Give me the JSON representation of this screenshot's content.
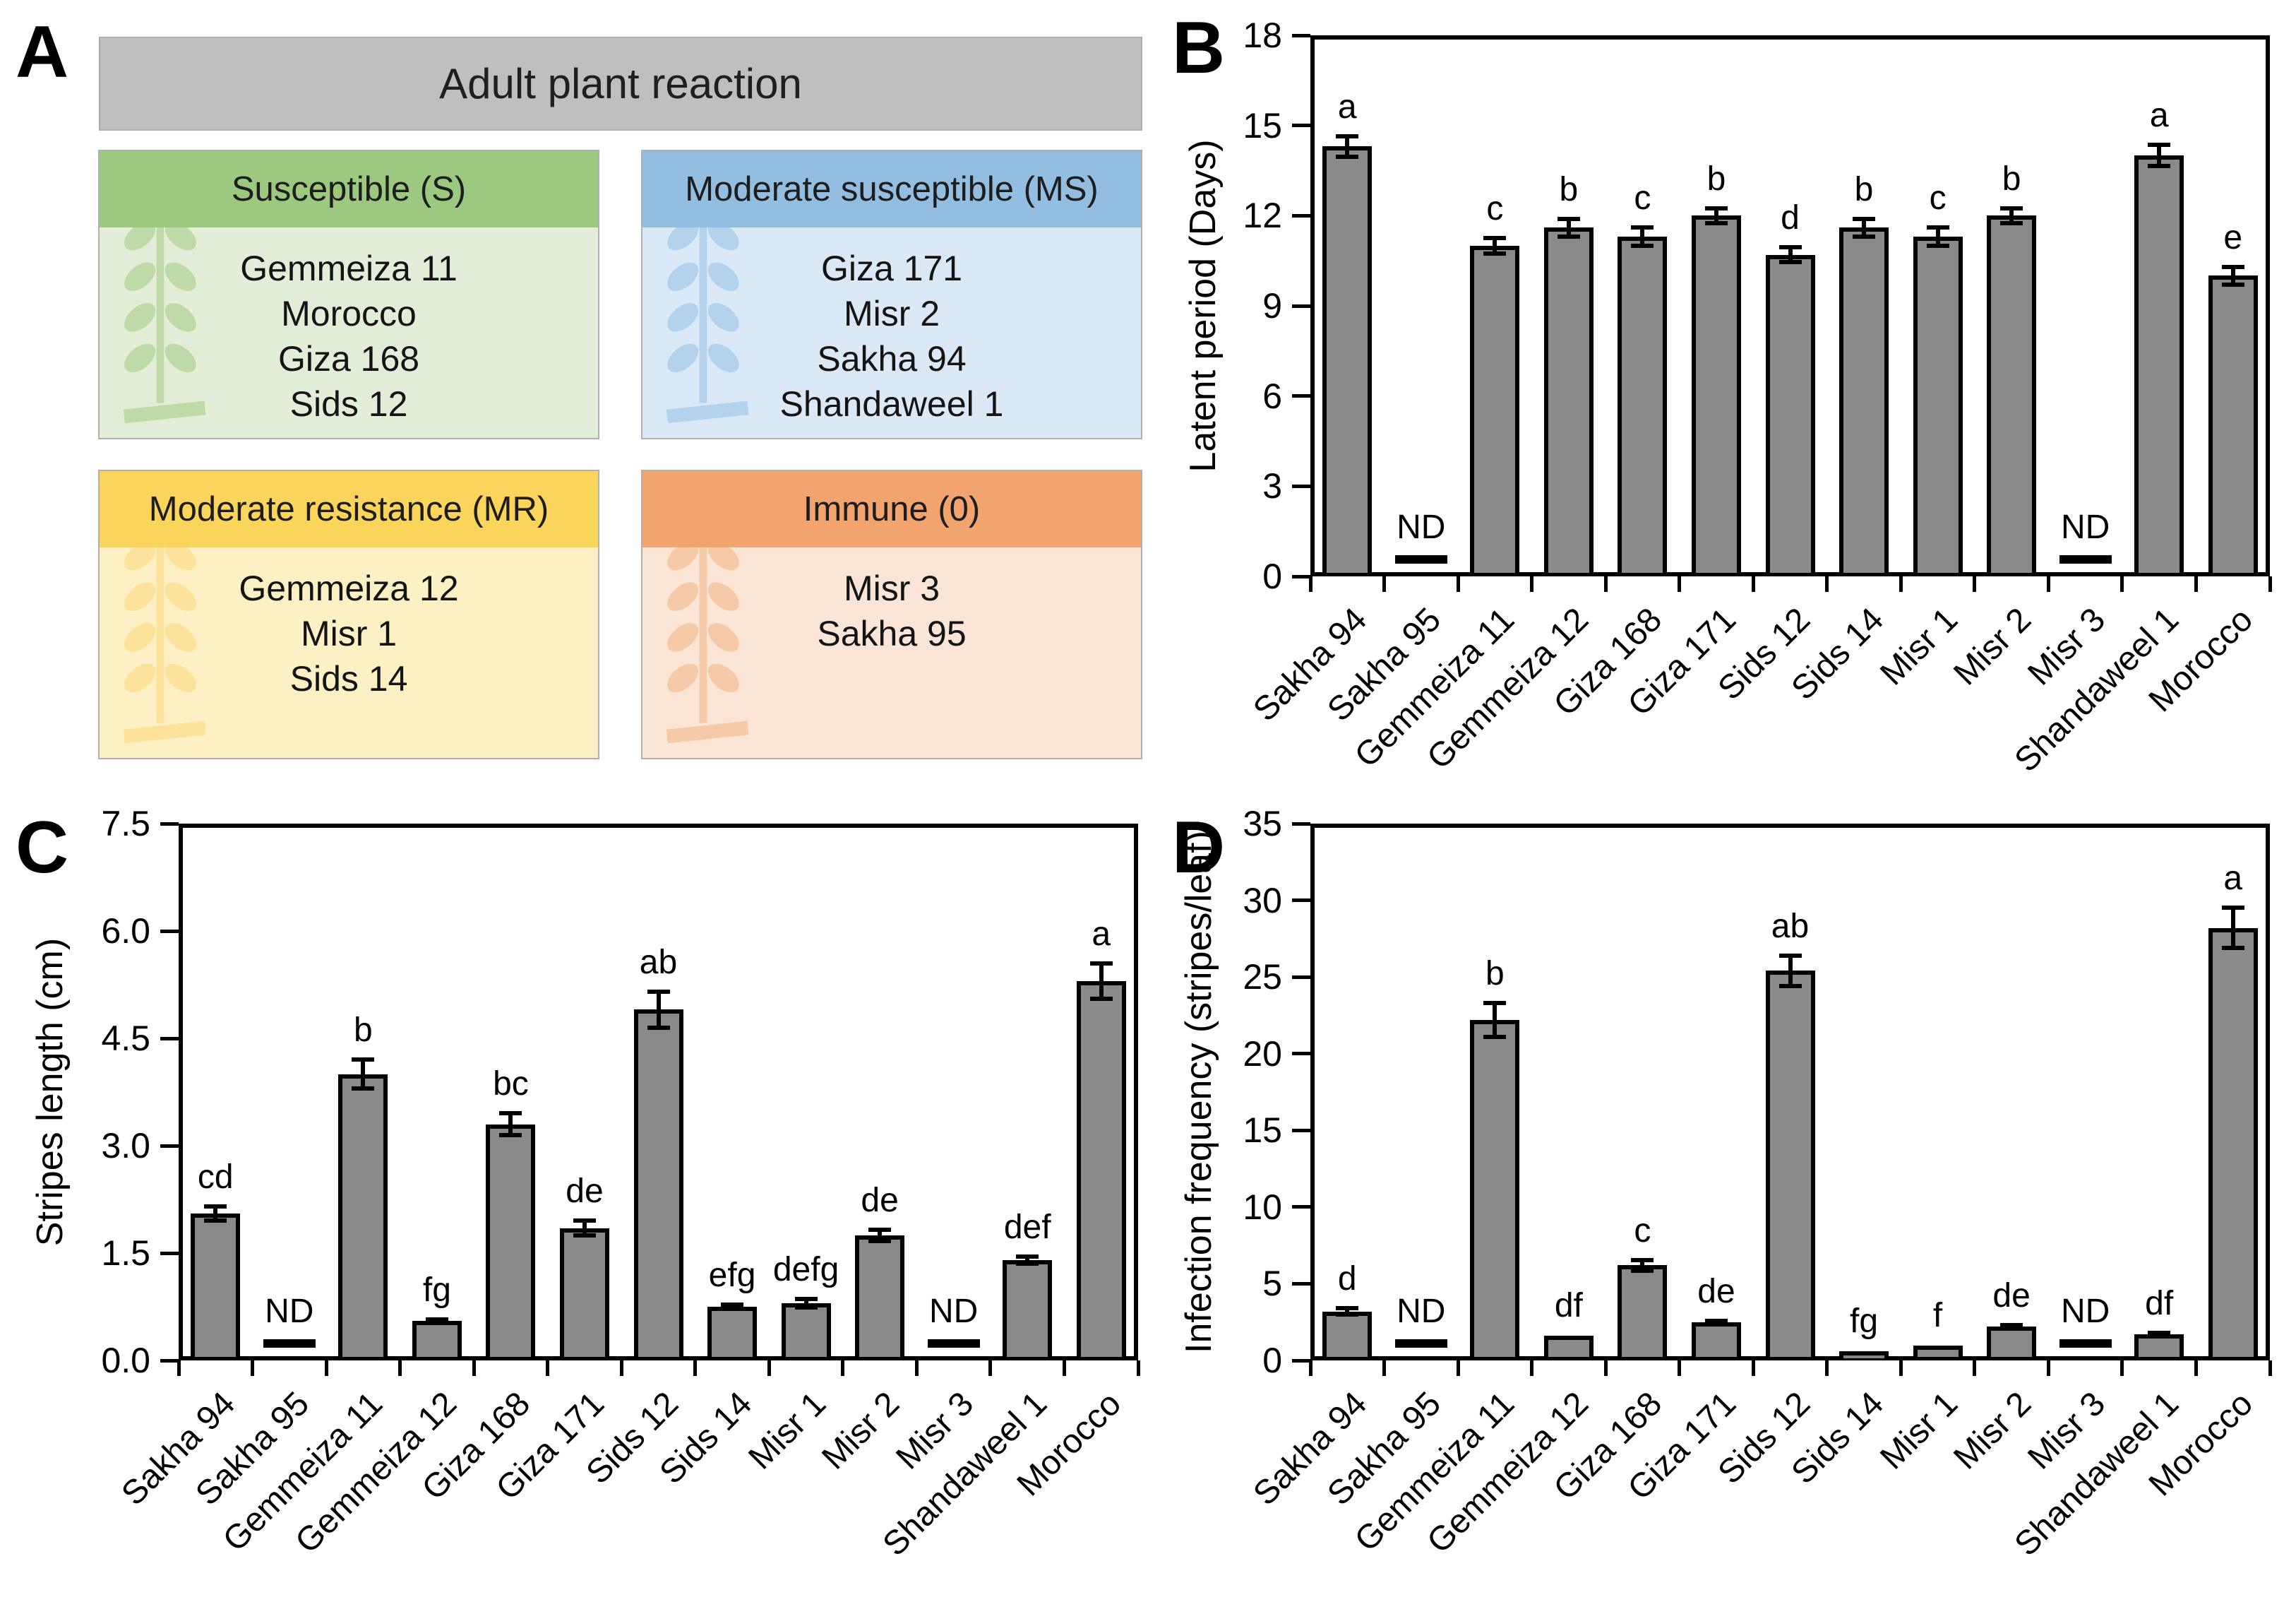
{
  "panels": {
    "a_label": "A",
    "b_label": "B",
    "c_label": "C",
    "d_label": "D"
  },
  "panel_a": {
    "title": "Adult plant reaction",
    "title_bg": "#bfbfbf",
    "boxes": [
      {
        "id": "susceptible",
        "title": "Susceptible (S)",
        "header_color": "#9dc87f",
        "body_color": "#e2eed7",
        "icon_color": "#bedaa8",
        "varieties": [
          "Gemmeiza 11",
          "Morocco",
          "Giza 168",
          "Sids 12"
        ]
      },
      {
        "id": "moderate-susceptible",
        "title": "Moderate susceptible (MS)",
        "header_color": "#93bee2",
        "body_color": "#dbe9f6",
        "icon_color": "#b4d2ec",
        "varieties": [
          "Giza 171",
          "Misr 2",
          "Sakha 94",
          "Shandaweel 1"
        ]
      },
      {
        "id": "moderate-resistance",
        "title": "Moderate resistance (MR)",
        "header_color": "#fbd45c",
        "body_color": "#fdf0c5",
        "icon_color": "#fce29a",
        "varieties": [
          "Gemmeiza 12",
          "Misr 1",
          "Sids 14"
        ]
      },
      {
        "id": "immune",
        "title": "Immune (0)",
        "header_color": "#f1a46e",
        "body_color": "#fbe5d6",
        "icon_color": "#f6c9a8",
        "varieties": [
          "Misr 3",
          "Sakha 95"
        ]
      }
    ]
  },
  "chart_data": [
    {
      "panel": "B",
      "type": "bar",
      "title": "",
      "xlabel": "",
      "ylabel": "Latent period (Days)",
      "ylim": [
        0,
        18
      ],
      "yticks": [
        0,
        3,
        6,
        9,
        12,
        15,
        18
      ],
      "ytick_labels": [
        "0",
        "3",
        "6",
        "9",
        "12",
        "15",
        "18"
      ],
      "grid": false,
      "legend": "none",
      "bar_color": "#8a8a8a",
      "nd_label": "ND",
      "categories": [
        "Sakha 94",
        "Sakha 95",
        "Gemmeiza 11",
        "Gemmeiza 12",
        "Giza 168",
        "Giza 171",
        "Sids 12",
        "Sids 14",
        "Misr 1",
        "Misr 2",
        "Misr 3",
        "Shandaweel 1",
        "Morocco"
      ],
      "values": [
        14.3,
        null,
        11.0,
        11.6,
        11.3,
        12.0,
        10.7,
        11.6,
        11.3,
        12.0,
        null,
        14.0,
        10.0
      ],
      "errors": [
        0.35,
        null,
        0.25,
        0.3,
        0.3,
        0.25,
        0.25,
        0.3,
        0.3,
        0.25,
        null,
        0.35,
        0.3
      ],
      "letters": [
        "a",
        "ND",
        "c",
        "b",
        "c",
        "b",
        "d",
        "b",
        "c",
        "b",
        "ND",
        "a",
        "e"
      ]
    },
    {
      "panel": "C",
      "type": "bar",
      "title": "",
      "xlabel": "",
      "ylabel": "Stripes length (cm)",
      "ylim": [
        0,
        7.5
      ],
      "yticks": [
        0,
        1.5,
        3.0,
        4.5,
        6.0,
        7.5
      ],
      "ytick_labels": [
        "0.0",
        "1.5",
        "3.0",
        "4.5",
        "6.0",
        "7.5"
      ],
      "grid": false,
      "legend": "none",
      "bar_color": "#8a8a8a",
      "nd_label": "ND",
      "categories": [
        "Sakha 94",
        "Sakha 95",
        "Gemmeiza 11",
        "Gemmeiza 12",
        "Giza 168",
        "Giza 171",
        "Sids 12",
        "Sids 14",
        "Misr 1",
        "Misr 2",
        "Misr 3",
        "Shandaweel 1",
        "Morocco"
      ],
      "values": [
        2.05,
        null,
        4.0,
        0.55,
        3.3,
        1.85,
        4.9,
        0.75,
        0.8,
        1.75,
        null,
        1.4,
        5.3
      ],
      "errors": [
        0.1,
        null,
        0.2,
        0.02,
        0.15,
        0.1,
        0.25,
        0.03,
        0.06,
        0.08,
        null,
        0.05,
        0.25
      ],
      "letters": [
        "cd",
        "ND",
        "b",
        "fg",
        "bc",
        "de",
        "ab",
        "efg",
        "defg",
        "de",
        "ND",
        "def",
        "a"
      ]
    },
    {
      "panel": "D",
      "type": "bar",
      "title": "",
      "xlabel": "",
      "ylabel": "Infection frequency (stripes/leaf)",
      "ylim": [
        0,
        35
      ],
      "yticks": [
        0,
        5,
        10,
        15,
        20,
        25,
        30,
        35
      ],
      "ytick_labels": [
        "0",
        "5",
        "10",
        "15",
        "20",
        "25",
        "30",
        "35"
      ],
      "grid": false,
      "legend": "none",
      "bar_color": "#8a8a8a",
      "nd_label": "ND",
      "categories": [
        "Sakha 94",
        "Sakha 95",
        "Gemmeiza 11",
        "Gemmeiza 12",
        "Giza 168",
        "Giza 171",
        "Sids 12",
        "Sids 14",
        "Misr 1",
        "Misr 2",
        "Misr 3",
        "Shandaweel 1",
        "Morocco"
      ],
      "values": [
        3.2,
        null,
        22.2,
        1.6,
        6.2,
        2.5,
        25.4,
        0.6,
        0.95,
        2.2,
        null,
        1.7,
        28.2
      ],
      "errors": [
        0.2,
        null,
        1.1,
        0.05,
        0.35,
        0.1,
        1.0,
        0.05,
        0.08,
        0.1,
        null,
        0.1,
        1.3
      ],
      "letters": [
        "d",
        "ND",
        "b",
        "df",
        "c",
        "de",
        "ab",
        "fg",
        "f",
        "de",
        "ND",
        "df",
        "a"
      ]
    }
  ]
}
